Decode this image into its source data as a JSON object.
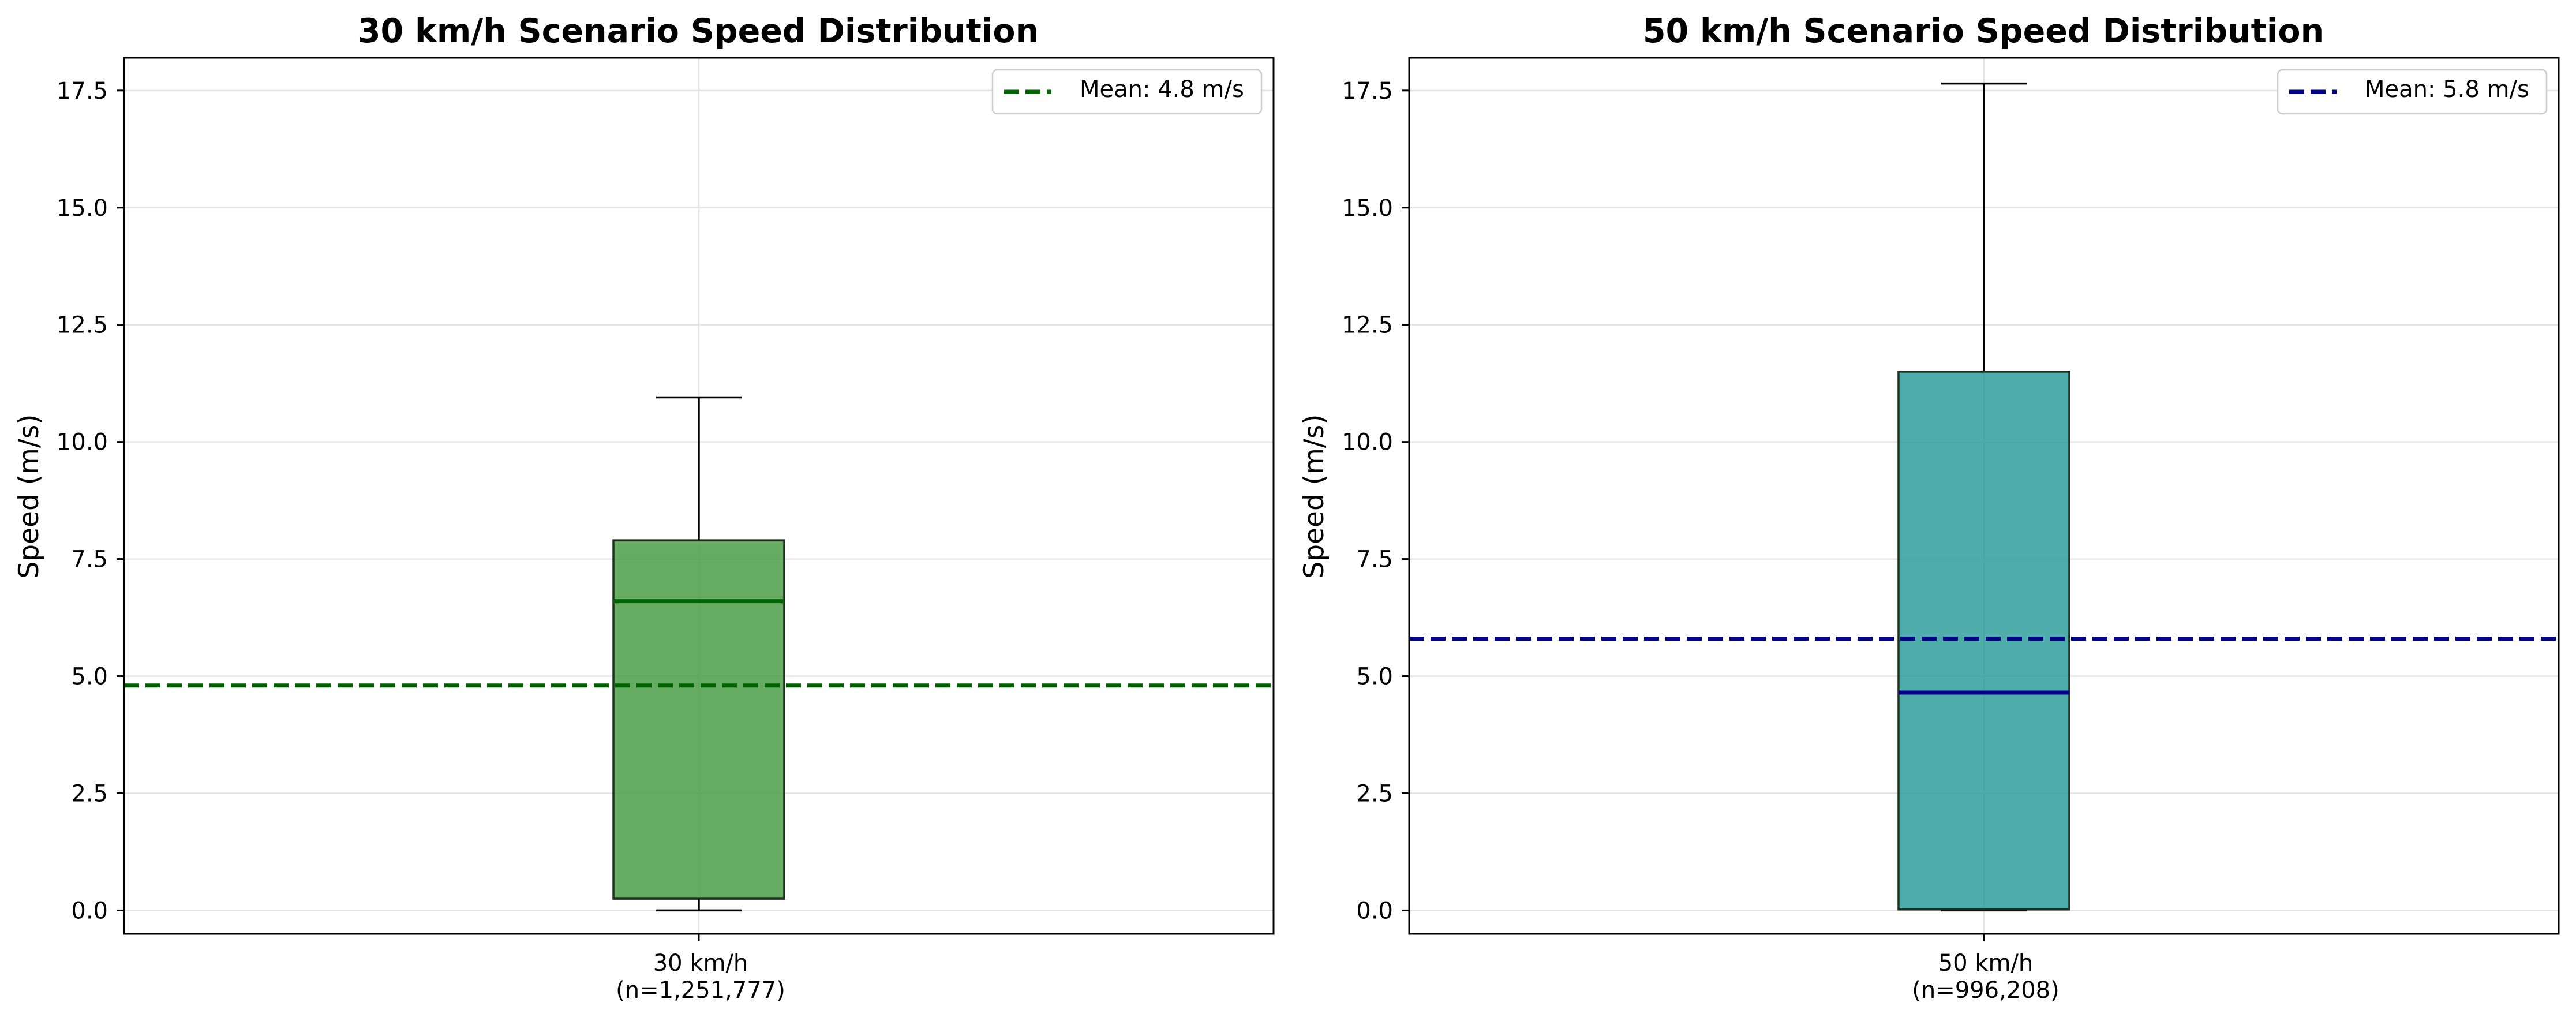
{
  "chart_data": [
    {
      "type": "box",
      "title": "30 km/h Scenario Speed Distribution",
      "xlabel": "",
      "ylabel": "Speed (m/s)",
      "ylim": [
        -0.5,
        18.2
      ],
      "yticks": [
        0.0,
        2.5,
        5.0,
        7.5,
        10.0,
        12.5,
        15.0,
        17.5
      ],
      "ytick_labels": [
        "0.0",
        "2.5",
        "5.0",
        "7.5",
        "10.0",
        "12.5",
        "15.0",
        "17.5"
      ],
      "grid": true,
      "legend_position": "top-right",
      "categories": [
        [
          "30 km/h",
          "(n=1,251,777)"
        ]
      ],
      "box": {
        "whisker_low": 0.0,
        "q1": 0.25,
        "median": 6.6,
        "q3": 7.9,
        "whisker_high": 10.95
      },
      "mean": {
        "value": 4.8,
        "label": "Mean: 4.8 m/s"
      },
      "colors": {
        "box_fill": "#4a9e46",
        "median": "#006400",
        "mean_line": "#006400"
      }
    },
    {
      "type": "box",
      "title": "50 km/h Scenario Speed Distribution",
      "xlabel": "",
      "ylabel": "Speed (m/s)",
      "ylim": [
        -0.5,
        18.2
      ],
      "yticks": [
        0.0,
        2.5,
        5.0,
        7.5,
        10.0,
        12.5,
        15.0,
        17.5
      ],
      "ytick_labels": [
        "0.0",
        "2.5",
        "5.0",
        "7.5",
        "10.0",
        "12.5",
        "15.0",
        "17.5"
      ],
      "grid": true,
      "legend_position": "top-right",
      "categories": [
        [
          "50 km/h",
          "(n=996,208)"
        ]
      ],
      "box": {
        "whisker_low": 0.0,
        "q1": 0.02,
        "median": 4.65,
        "q3": 11.5,
        "whisker_high": 17.65
      },
      "mean": {
        "value": 5.8,
        "label": "Mean: 5.8 m/s"
      },
      "colors": {
        "box_fill": "#2f9e9b",
        "median": "#00008b",
        "mean_line": "#00008b"
      }
    }
  ]
}
